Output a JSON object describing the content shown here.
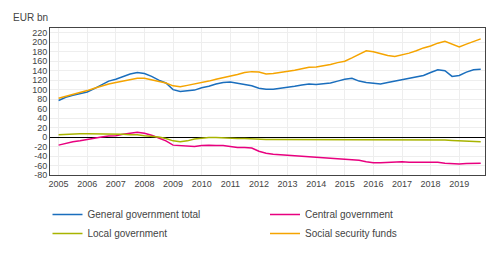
{
  "chart_data": {
    "type": "line",
    "ylabel": "EUR bn",
    "x": [
      2005,
      2005.25,
      2005.5,
      2005.75,
      2006,
      2006.25,
      2006.5,
      2006.75,
      2007,
      2007.25,
      2007.5,
      2007.75,
      2008,
      2008.25,
      2008.5,
      2008.75,
      2009,
      2009.25,
      2009.5,
      2009.75,
      2010,
      2010.25,
      2010.5,
      2010.75,
      2011,
      2011.25,
      2011.5,
      2011.75,
      2012,
      2012.25,
      2012.5,
      2012.75,
      2013,
      2013.25,
      2013.5,
      2013.75,
      2014,
      2014.25,
      2014.5,
      2014.75,
      2015,
      2015.25,
      2015.5,
      2015.75,
      2016,
      2016.25,
      2016.5,
      2016.75,
      2017,
      2017.25,
      2017.5,
      2017.75,
      2018,
      2018.25,
      2018.5,
      2018.75,
      2019,
      2019.25,
      2019.5,
      2019.75
    ],
    "series": [
      {
        "name": "General government total",
        "color": "#1a6ebd",
        "values": [
          77,
          84,
          88,
          92,
          95,
          102,
          110,
          118,
          122,
          128,
          133,
          136,
          134,
          128,
          120,
          114,
          100,
          96,
          97,
          99,
          104,
          107,
          112,
          115,
          116,
          113,
          110,
          108,
          103,
          101,
          101,
          103,
          104,
          107,
          110,
          112,
          111,
          112,
          114,
          118,
          122,
          124,
          118,
          115,
          113,
          112,
          115,
          118,
          120,
          123,
          126,
          130,
          136,
          142,
          140,
          128,
          130,
          137,
          142,
          143
        ]
      },
      {
        "name": "Central government",
        "color": "#e8007f",
        "values": [
          -17,
          -13,
          -10,
          -8,
          -5,
          -2,
          0,
          2,
          3,
          6,
          8,
          10,
          8,
          4,
          -2,
          -8,
          -17,
          -18,
          -20,
          -20,
          -18,
          -17,
          -18,
          -18,
          -20,
          -22,
          -22,
          -23,
          -30,
          -34,
          -36,
          -37,
          -38,
          -40,
          -41,
          -42,
          -43,
          -44,
          -45,
          -46,
          -47,
          -48,
          -49,
          -52,
          -54,
          -54,
          -53,
          -52,
          -52,
          -53,
          -53,
          -54,
          -54,
          -53,
          -55,
          -56,
          -57,
          -56,
          -55,
          -55
        ]
      },
      {
        "name": "Local government",
        "color": "#a8b400",
        "values": [
          5,
          6,
          7,
          7,
          7,
          7,
          7,
          7,
          7,
          6,
          5,
          5,
          3,
          2,
          0,
          -3,
          -8,
          -10,
          -8,
          -4,
          -2,
          -1,
          -1,
          -2,
          -3,
          -3,
          -3,
          -4,
          -5,
          -5,
          -5,
          -5,
          -5,
          -5,
          -5,
          -5,
          -5,
          -5,
          -5,
          -5,
          -5,
          -5,
          -5,
          -5,
          -5,
          -5,
          -5,
          -5,
          -5,
          -5,
          -5,
          -5,
          -5,
          -5,
          -6,
          -7,
          -8,
          -9,
          -10,
          -10
        ]
      },
      {
        "name": "Social security funds",
        "color": "#f5a400",
        "values": [
          82,
          86,
          90,
          93,
          98,
          103,
          108,
          112,
          115,
          118,
          122,
          124,
          124,
          121,
          118,
          114,
          108,
          106,
          109,
          112,
          114,
          118,
          122,
          125,
          128,
          132,
          136,
          138,
          137,
          133,
          134,
          136,
          138,
          141,
          144,
          147,
          148,
          150,
          153,
          157,
          160,
          167,
          175,
          182,
          180,
          176,
          172,
          170,
          173,
          177,
          182,
          188,
          192,
          198,
          202,
          196,
          190,
          196,
          202,
          207
        ]
      }
    ],
    "xlim": [
      2004.7,
      2019.9
    ],
    "xticks": [
      2005,
      2006,
      2007,
      2008,
      2009,
      2010,
      2011,
      2012,
      2013,
      2014,
      2015,
      2016,
      2017,
      2018,
      2019
    ],
    "ylim": [
      -80,
      230
    ],
    "yticks": [
      -80,
      -60,
      -40,
      -20,
      0,
      20,
      40,
      60,
      80,
      100,
      120,
      140,
      160,
      180,
      200,
      220
    ],
    "grid": true,
    "legend": "bottom"
  }
}
